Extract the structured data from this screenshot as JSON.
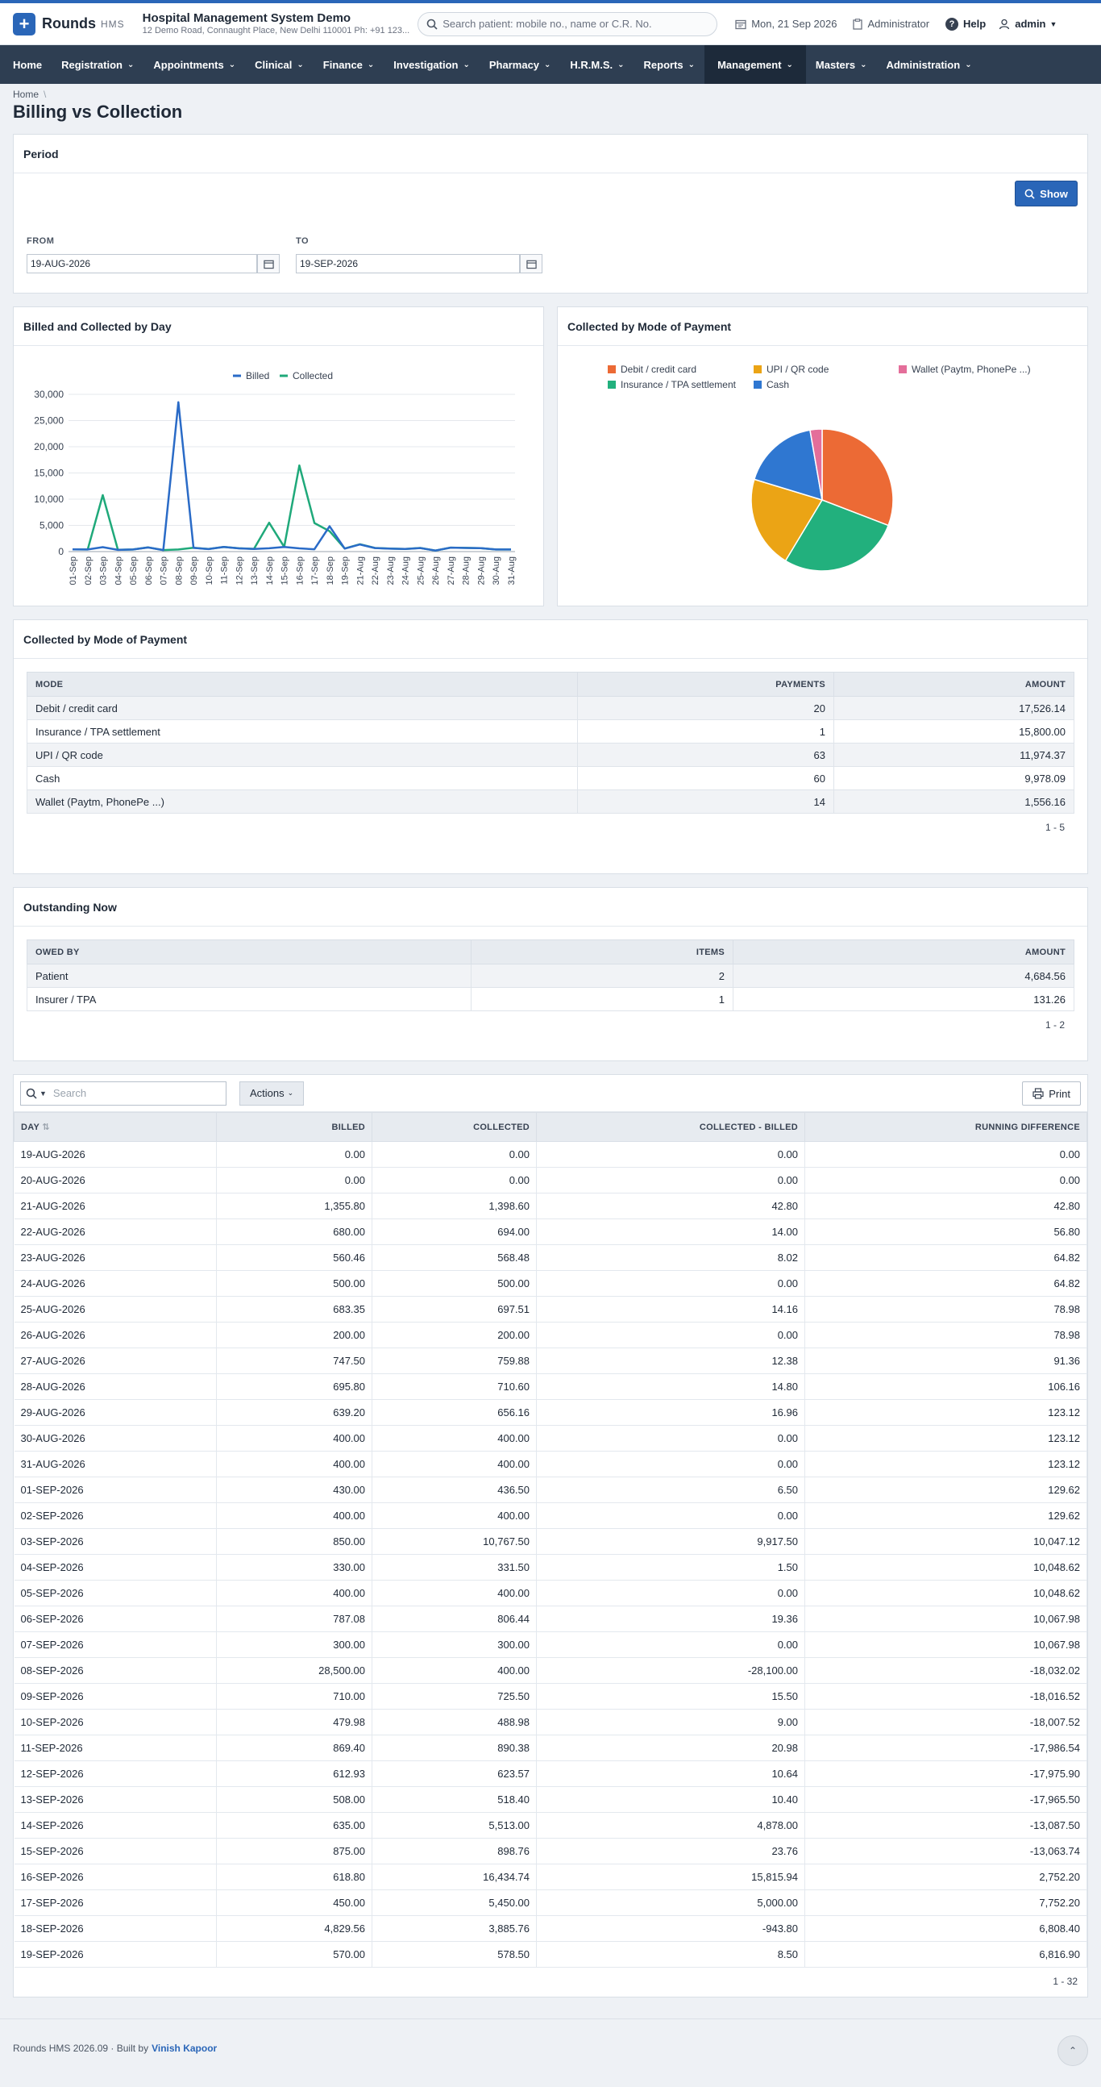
{
  "app": {
    "name": "Rounds",
    "sub": "HMS"
  },
  "hospital": {
    "name": "Hospital Management System Demo",
    "address": "12 Demo Road, Connaught Place, New Delhi 110001 Ph: +91 123..."
  },
  "search": {
    "placeholder": "Search patient: mobile no., name or C.R. No."
  },
  "header": {
    "date": "Mon, 21 Sep 2026",
    "role": "Administrator",
    "help": "Help",
    "user": "admin"
  },
  "nav": [
    "Home",
    "Registration",
    "Appointments",
    "Clinical",
    "Finance",
    "Investigation",
    "Pharmacy",
    "H.R.M.S.",
    "Reports",
    "Management",
    "Masters",
    "Administration"
  ],
  "breadcrumb": {
    "home": "Home",
    "sep": "\\"
  },
  "page_title": "Billing vs Collection",
  "period": {
    "title": "Period",
    "show_label": "Show",
    "from_label": "FROM",
    "from_value": "19-AUG-2026",
    "to_label": "TO",
    "to_value": "19-SEP-2026"
  },
  "line_chart_title": "Billed and Collected by Day",
  "pie_chart_title": "Collected by Mode of Payment",
  "colors": {
    "billed": "#2a6bc7",
    "collected": "#1fa97a",
    "debit": "#ec6a35",
    "upi": "#eba415",
    "wallet": "#e46e9a",
    "insurance": "#22b07d",
    "cash": "#2f77d1",
    "brand": "#2a66b8",
    "nav": "#2e3e52"
  },
  "chart_data": [
    {
      "type": "line",
      "x": [
        "01-Sep",
        "02-Sep",
        "03-Sep",
        "04-Sep",
        "05-Sep",
        "06-Sep",
        "07-Sep",
        "08-Sep",
        "09-Sep",
        "10-Sep",
        "11-Sep",
        "12-Sep",
        "13-Sep",
        "14-Sep",
        "15-Sep",
        "16-Sep",
        "17-Sep",
        "18-Sep",
        "19-Sep",
        "21-Aug",
        "22-Aug",
        "23-Aug",
        "24-Aug",
        "25-Aug",
        "26-Aug",
        "27-Aug",
        "28-Aug",
        "29-Aug",
        "30-Aug",
        "31-Aug"
      ],
      "yticks": [
        "0",
        "5,000",
        "10,000",
        "15,000",
        "20,000",
        "25,000",
        "30,000"
      ],
      "ylim": [
        0,
        30000
      ],
      "series": [
        {
          "name": "Billed",
          "values": [
            430,
            400,
            850,
            330,
            400,
            787.08,
            300,
            28500,
            710,
            479.98,
            869.4,
            612.93,
            508,
            635,
            875,
            618.8,
            450,
            4829.56,
            570,
            1355.8,
            680,
            560.46,
            500,
            683.35,
            200,
            747.5,
            695.8,
            639.2,
            400,
            400
          ]
        },
        {
          "name": "Collected",
          "values": [
            436.5,
            400,
            10767.5,
            331.5,
            400,
            806.44,
            300,
            400,
            725.5,
            488.98,
            890.38,
            623.57,
            518.4,
            5513,
            898.76,
            16434.74,
            5450,
            3885.76,
            578.5,
            1398.6,
            694,
            568.48,
            500,
            697.51,
            200,
            759.88,
            710.6,
            656.16,
            400,
            400
          ]
        }
      ]
    },
    {
      "type": "pie",
      "categories": [
        "Debit / credit card",
        "UPI / QR code",
        "Wallet (Paytm, PhonePe ...)",
        "Insurance / TPA settlement",
        "Cash"
      ],
      "values": [
        17526.14,
        11974.37,
        1556.16,
        15800.0,
        9978.09
      ]
    }
  ],
  "mode_table": {
    "title": "Collected by Mode of Payment",
    "headers": [
      "MODE",
      "PAYMENTS",
      "AMOUNT"
    ],
    "rows": [
      [
        "Debit / credit card",
        "20",
        "17,526.14"
      ],
      [
        "Insurance / TPA settlement",
        "1",
        "15,800.00"
      ],
      [
        "UPI / QR code",
        "63",
        "11,974.37"
      ],
      [
        "Cash",
        "60",
        "9,978.09"
      ],
      [
        "Wallet (Paytm, PhonePe ...)",
        "14",
        "1,556.16"
      ]
    ],
    "pager": "1 - 5"
  },
  "outstanding": {
    "title": "Outstanding Now",
    "headers": [
      "OWED BY",
      "ITEMS",
      "AMOUNT"
    ],
    "rows": [
      [
        "Patient",
        "2",
        "4,684.56"
      ],
      [
        "Insurer / TPA",
        "1",
        "131.26"
      ]
    ],
    "pager": "1 - 2"
  },
  "grid": {
    "search_placeholder": "Search",
    "actions_label": "Actions",
    "print_label": "Print",
    "headers": [
      "DAY",
      "BILLED",
      "COLLECTED",
      "COLLECTED - BILLED",
      "RUNNING DIFFERENCE"
    ],
    "rows": [
      [
        "19-AUG-2026",
        "0.00",
        "0.00",
        "0.00",
        "0.00"
      ],
      [
        "20-AUG-2026",
        "0.00",
        "0.00",
        "0.00",
        "0.00"
      ],
      [
        "21-AUG-2026",
        "1,355.80",
        "1,398.60",
        "42.80",
        "42.80"
      ],
      [
        "22-AUG-2026",
        "680.00",
        "694.00",
        "14.00",
        "56.80"
      ],
      [
        "23-AUG-2026",
        "560.46",
        "568.48",
        "8.02",
        "64.82"
      ],
      [
        "24-AUG-2026",
        "500.00",
        "500.00",
        "0.00",
        "64.82"
      ],
      [
        "25-AUG-2026",
        "683.35",
        "697.51",
        "14.16",
        "78.98"
      ],
      [
        "26-AUG-2026",
        "200.00",
        "200.00",
        "0.00",
        "78.98"
      ],
      [
        "27-AUG-2026",
        "747.50",
        "759.88",
        "12.38",
        "91.36"
      ],
      [
        "28-AUG-2026",
        "695.80",
        "710.60",
        "14.80",
        "106.16"
      ],
      [
        "29-AUG-2026",
        "639.20",
        "656.16",
        "16.96",
        "123.12"
      ],
      [
        "30-AUG-2026",
        "400.00",
        "400.00",
        "0.00",
        "123.12"
      ],
      [
        "31-AUG-2026",
        "400.00",
        "400.00",
        "0.00",
        "123.12"
      ],
      [
        "01-SEP-2026",
        "430.00",
        "436.50",
        "6.50",
        "129.62"
      ],
      [
        "02-SEP-2026",
        "400.00",
        "400.00",
        "0.00",
        "129.62"
      ],
      [
        "03-SEP-2026",
        "850.00",
        "10,767.50",
        "9,917.50",
        "10,047.12"
      ],
      [
        "04-SEP-2026",
        "330.00",
        "331.50",
        "1.50",
        "10,048.62"
      ],
      [
        "05-SEP-2026",
        "400.00",
        "400.00",
        "0.00",
        "10,048.62"
      ],
      [
        "06-SEP-2026",
        "787.08",
        "806.44",
        "19.36",
        "10,067.98"
      ],
      [
        "07-SEP-2026",
        "300.00",
        "300.00",
        "0.00",
        "10,067.98"
      ],
      [
        "08-SEP-2026",
        "28,500.00",
        "400.00",
        "-28,100.00",
        "-18,032.02"
      ],
      [
        "09-SEP-2026",
        "710.00",
        "725.50",
        "15.50",
        "-18,016.52"
      ],
      [
        "10-SEP-2026",
        "479.98",
        "488.98",
        "9.00",
        "-18,007.52"
      ],
      [
        "11-SEP-2026",
        "869.40",
        "890.38",
        "20.98",
        "-17,986.54"
      ],
      [
        "12-SEP-2026",
        "612.93",
        "623.57",
        "10.64",
        "-17,975.90"
      ],
      [
        "13-SEP-2026",
        "508.00",
        "518.40",
        "10.40",
        "-17,965.50"
      ],
      [
        "14-SEP-2026",
        "635.00",
        "5,513.00",
        "4,878.00",
        "-13,087.50"
      ],
      [
        "15-SEP-2026",
        "875.00",
        "898.76",
        "23.76",
        "-13,063.74"
      ],
      [
        "16-SEP-2026",
        "618.80",
        "16,434.74",
        "15,815.94",
        "2,752.20"
      ],
      [
        "17-SEP-2026",
        "450.00",
        "5,450.00",
        "5,000.00",
        "7,752.20"
      ],
      [
        "18-SEP-2026",
        "4,829.56",
        "3,885.76",
        "-943.80",
        "6,808.40"
      ],
      [
        "19-SEP-2026",
        "570.00",
        "578.50",
        "8.50",
        "6,816.90"
      ]
    ],
    "pager": "1 - 32"
  },
  "footer": {
    "text": "Rounds HMS 2026.09 · Built by",
    "author": "Vinish Kapoor"
  }
}
